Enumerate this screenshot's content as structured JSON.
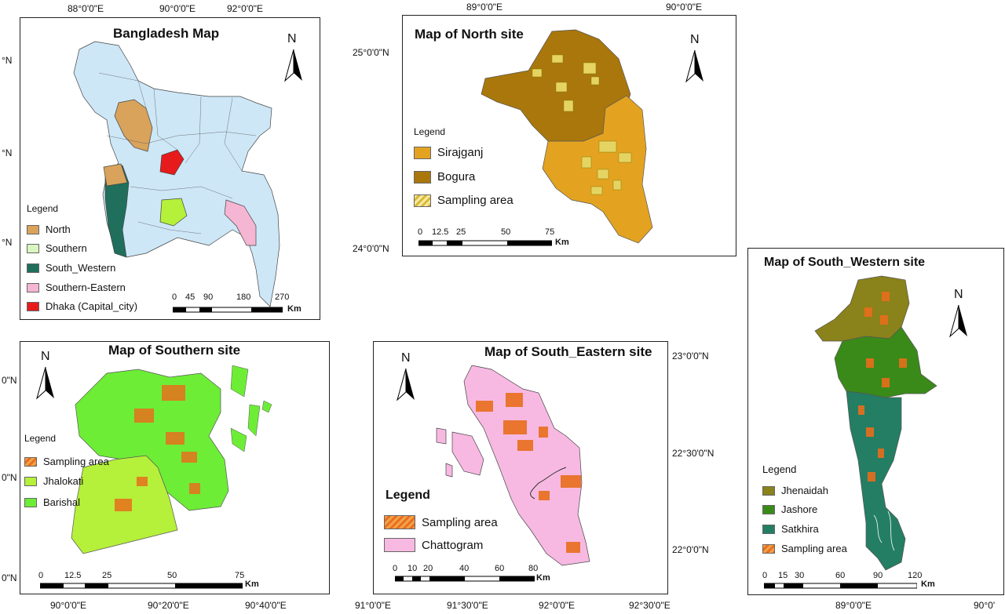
{
  "colors": {
    "north": "#d9a35c",
    "southern": "#d9f5c0",
    "south_western": "#1f6f5c",
    "southern_eastern": "#f4b6d2",
    "dhaka": "#e71b1b",
    "country": "#cde7f7",
    "sirajganj": "#e3a321",
    "bogura": "#a9770c",
    "jhalokati": "#b5f03a",
    "barishal": "#6ded36",
    "chattogram": "#f7b9e2",
    "jhenaidah": "#8a821a",
    "jashore": "#3a8a1a",
    "satkhira": "#247e63",
    "sampling_orange": "#e86e1c",
    "sampling_yellow": "#e6d462"
  },
  "bangladesh": {
    "title": "Bangladesh Map",
    "ticks_top": [
      "88°0'0\"E",
      "90°0'0\"E",
      "92°0'0\"E"
    ],
    "ticks_left": [
      "°N",
      "°N",
      "°N"
    ],
    "legend_title": "Legend",
    "legend": [
      "North",
      "Southern",
      "South_Western",
      "Southern-Eastern",
      "Dhaka (Capital_city)"
    ],
    "scale": [
      "0",
      "45",
      "90",
      "180",
      "270"
    ],
    "scale_unit": "Km",
    "north_label": "N"
  },
  "north": {
    "title": "Map of North site",
    "ticks_top": [
      "89°0'0\"E",
      "90°0'0\"E"
    ],
    "ticks_left": [
      "25°0'0\"N",
      "24°0'0\"N"
    ],
    "legend_title": "Legend",
    "legend": [
      "Sirajganj",
      "Bogura",
      "Sampling area"
    ],
    "scale": [
      "0",
      "12.5",
      "25",
      "50",
      "75"
    ],
    "scale_unit": "Km",
    "north_label": "N"
  },
  "southern": {
    "title": "Map of Southern site",
    "ticks_bottom": [
      "90°0'0\"E",
      "90°20'0\"E",
      "90°40'0\"E"
    ],
    "ticks_left": [
      "0\"N",
      "0\"N",
      "0\"N"
    ],
    "legend_title": "Legend",
    "legend": [
      "Sampling area",
      "Jhalokati",
      "Barishal"
    ],
    "scale": [
      "0",
      "12.5",
      "25",
      "50",
      "75"
    ],
    "scale_unit": "Km",
    "north_label": "N"
  },
  "south_eastern": {
    "title": "Map of South_Eastern site",
    "ticks_bottom": [
      "91°0'0\"E",
      "91°30'0\"E",
      "92°0'0\"E",
      "92°30'0\"E"
    ],
    "ticks_right": [
      "23°0'0\"N",
      "22°30'0\"N",
      "22°0'0\"N"
    ],
    "legend_title": "Legend",
    "legend": [
      "Sampling area",
      "Chattogram"
    ],
    "scale": [
      "0",
      "10",
      "20",
      "40",
      "60",
      "80"
    ],
    "scale_unit": "Km",
    "north_label": "N"
  },
  "south_western": {
    "title": "Map of South_Western site",
    "ticks_bottom": [
      "89°0'0\"E",
      "90°0'"
    ],
    "legend_title": "Legend",
    "legend": [
      "Jhenaidah",
      "Jashore",
      "Satkhira",
      "Sampling area"
    ],
    "scale": [
      "0",
      "15",
      "30",
      "60",
      "90",
      "120"
    ],
    "scale_unit": "Km",
    "north_label": "N"
  }
}
